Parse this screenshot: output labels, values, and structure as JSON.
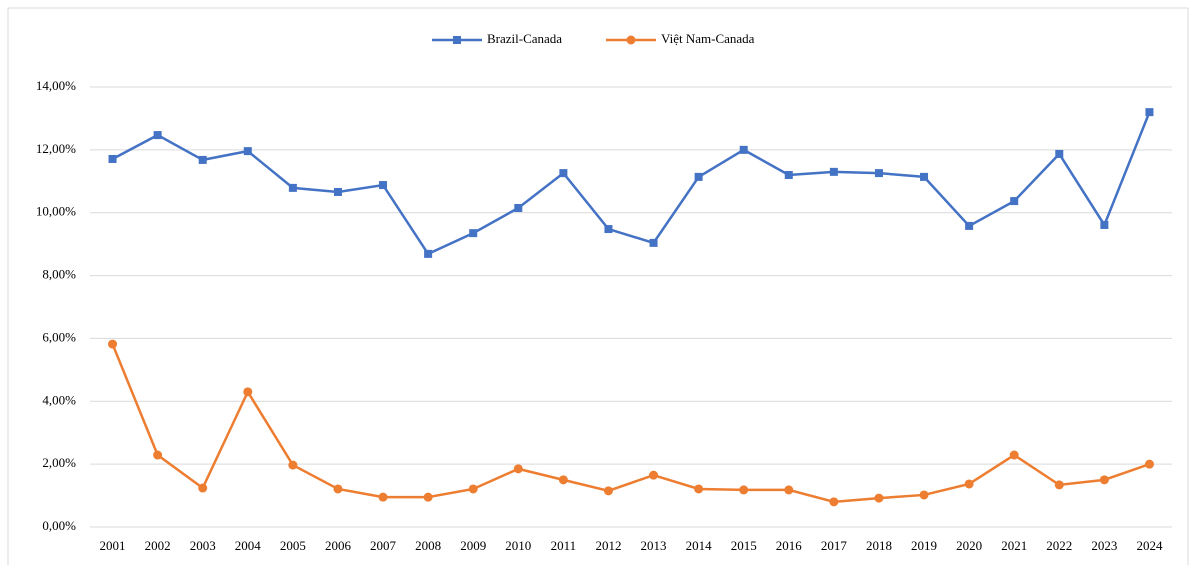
{
  "chart_data": {
    "type": "line",
    "categories": [
      "2001",
      "2002",
      "2003",
      "2004",
      "2005",
      "2006",
      "2007",
      "2008",
      "2009",
      "2010",
      "2011",
      "2012",
      "2013",
      "2014",
      "2015",
      "2016",
      "2017",
      "2018",
      "2019",
      "2020",
      "2021",
      "2022",
      "2023",
      "2024"
    ],
    "series": [
      {
        "name": "Brazil-Canada",
        "color": "#4472c4",
        "marker": "square",
        "values": [
          11.71,
          12.47,
          11.68,
          11.96,
          10.79,
          10.66,
          10.88,
          8.69,
          9.35,
          10.15,
          11.26,
          9.48,
          9.04,
          11.14,
          12.0,
          11.2,
          11.3,
          11.26,
          11.14,
          9.58,
          10.37,
          11.87,
          9.61,
          13.2
        ]
      },
      {
        "name": "Việt Nam-Canada",
        "color": "#ed7d31",
        "marker": "circle",
        "values": [
          5.82,
          2.29,
          1.24,
          4.3,
          1.97,
          1.21,
          0.95,
          0.95,
          1.21,
          1.85,
          1.5,
          1.15,
          1.65,
          1.21,
          1.18,
          1.18,
          0.8,
          0.92,
          1.02,
          1.37,
          2.29,
          1.34,
          1.5,
          2.0
        ]
      }
    ],
    "ylim": [
      0,
      14
    ],
    "yticks": [
      {
        "value": 0,
        "label": "0,00%"
      },
      {
        "value": 2,
        "label": "2,00%"
      },
      {
        "value": 4,
        "label": "4,00%"
      },
      {
        "value": 6,
        "label": "6,00%"
      },
      {
        "value": 8,
        "label": "8,00%"
      },
      {
        "value": 10,
        "label": "10,00%"
      },
      {
        "value": 12,
        "label": "12,00%"
      },
      {
        "value": 14,
        "label": "14,00%"
      }
    ],
    "grid": true,
    "legend": "top"
  }
}
